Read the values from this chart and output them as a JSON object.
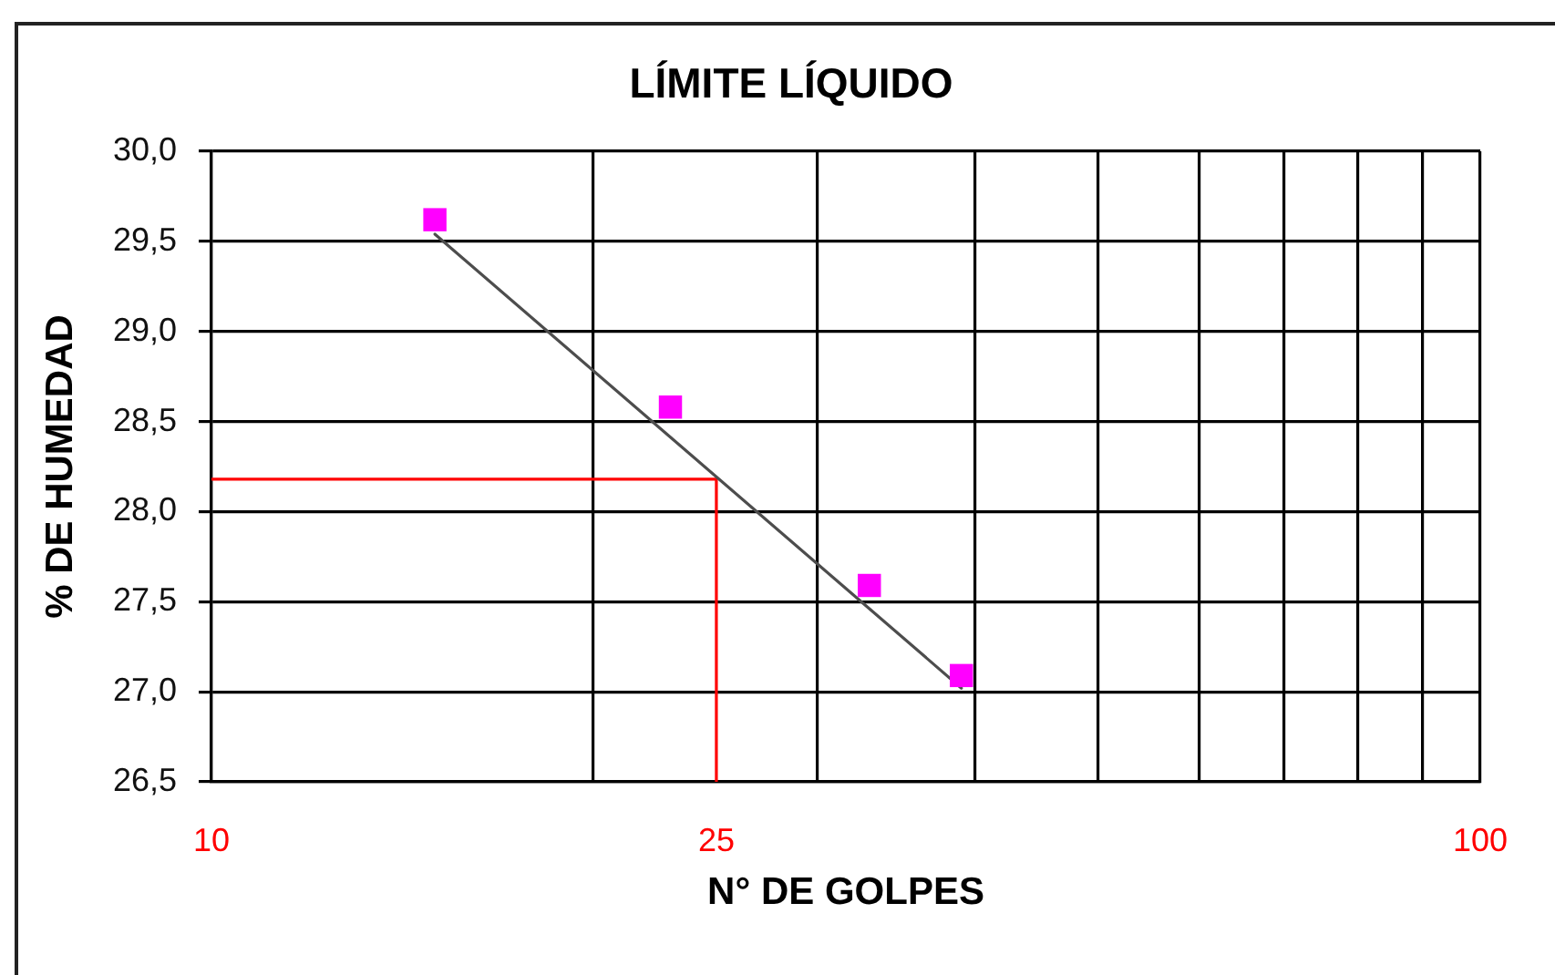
{
  "chart_data": {
    "type": "scatter",
    "title": "LÍMITE LÍQUIDO",
    "xlabel": "N° DE GOLPES",
    "ylabel": "% DE HUMEDAD",
    "log": "x",
    "xlim": [
      10,
      100
    ],
    "xticks": [
      10,
      {
        "value": 20,
        "label": null
      },
      25,
      {
        "value": 30,
        "label": null
      },
      {
        "value": 40,
        "label": null
      },
      {
        "value": 50,
        "label": null
      },
      {
        "value": 60,
        "label": null
      },
      {
        "value": 70,
        "label": null
      },
      {
        "value": 80,
        "label": null
      },
      {
        "value": 90,
        "label": null
      },
      100
    ],
    "ylim": [
      26.5,
      30
    ],
    "yticks": [
      {
        "value": 26.5,
        "label": "26,5"
      },
      {
        "value": 27,
        "label": "27,0"
      },
      {
        "value": 27.5,
        "label": "27,5"
      },
      {
        "value": 28,
        "label": "28,0"
      },
      {
        "value": 28.5,
        "label": "28,5"
      },
      {
        "value": 29,
        "label": "29,0"
      },
      {
        "value": 29.5,
        "label": "29,5"
      },
      {
        "value": 30,
        "label": "30,0"
      }
    ],
    "grid": true,
    "series": [
      {
        "color": "#ff00ff",
        "x": [
          15,
          23,
          33,
          39
        ],
        "values": [
          29.62,
          28.58,
          27.59,
          27.09
        ],
        "marker": "square"
      },
      {
        "type": "line",
        "color": "#4d4d4d",
        "x": [
          15,
          39
        ],
        "values": [
          29.54,
          27.02
        ],
        "marker": "none"
      },
      {
        "type": "line",
        "color": "#ff0000",
        "x": [
          10,
          25,
          25
        ],
        "values": [
          28.18,
          28.18,
          26.5
        ],
        "marker": "none"
      }
    ]
  }
}
